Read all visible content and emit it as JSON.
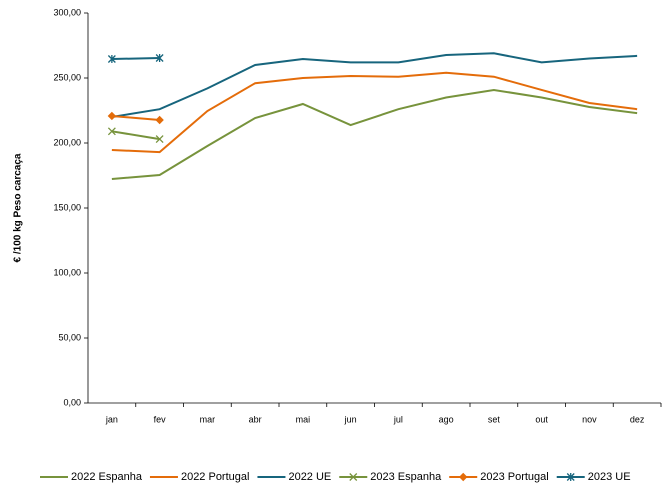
{
  "chart_data": {
    "type": "line",
    "y_label": "€ /100 kg Peso carcaça",
    "categories": [
      "jan",
      "fev",
      "mar",
      "abr",
      "mai",
      "jun",
      "jul",
      "ago",
      "set",
      "out",
      "nov",
      "dez"
    ],
    "ylim": [
      0,
      300
    ],
    "yticks": [
      {
        "value": 0,
        "label": "0,00"
      },
      {
        "value": 50,
        "label": "50,00"
      },
      {
        "value": 100,
        "label": "100,00"
      },
      {
        "value": 150,
        "label": "150,00"
      },
      {
        "value": 200,
        "label": "200,00"
      },
      {
        "value": 250,
        "label": "250,00"
      },
      {
        "value": 300,
        "label": "300,00"
      }
    ],
    "grid": false,
    "legend": "bottom",
    "series": [
      {
        "name": "2022 Espanha",
        "color": "#77933c",
        "marker": "none",
        "values": [
          172.3,
          175.4,
          197.7,
          219.2,
          230,
          213.8,
          226,
          235,
          240.8,
          235,
          227.7,
          223
        ]
      },
      {
        "name": "2022 Portugal",
        "color": "#e46c0a",
        "marker": "none",
        "values": [
          194.6,
          193,
          224.6,
          246,
          250,
          251.5,
          251,
          254,
          251,
          240.8,
          230.8,
          226
        ]
      },
      {
        "name": "2022 UE",
        "color": "#17657d",
        "marker": "none",
        "values": [
          220,
          226,
          242,
          260,
          264.6,
          262,
          262,
          267.7,
          269,
          262,
          265,
          267
        ]
      },
      {
        "name": "2023 Espanha",
        "color": "#77933c",
        "marker": "x",
        "values": [
          209,
          203,
          null,
          null,
          null,
          null,
          null,
          null,
          null,
          null,
          null,
          null
        ]
      },
      {
        "name": "2023 Portugal",
        "color": "#e46c0a",
        "marker": "diamond",
        "values": [
          220.8,
          217.7,
          null,
          null,
          null,
          null,
          null,
          null,
          null,
          null,
          null,
          null
        ]
      },
      {
        "name": "2023 UE",
        "color": "#17657d",
        "marker": "asterisk",
        "values": [
          264.6,
          265.4,
          null,
          null,
          null,
          null,
          null,
          null,
          null,
          null,
          null,
          null
        ]
      }
    ]
  }
}
